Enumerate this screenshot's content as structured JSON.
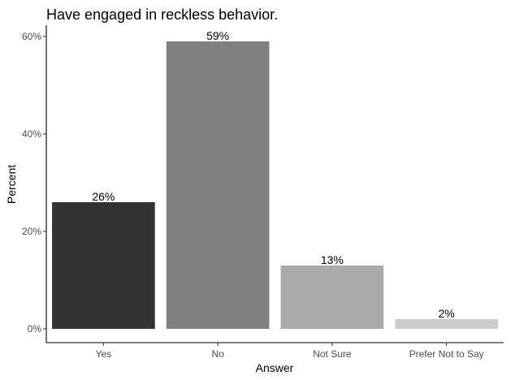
{
  "chart_data": {
    "type": "bar",
    "title": "Have engaged in reckless behavior.",
    "xlabel": "Answer",
    "ylabel": "Percent",
    "categories": [
      "Yes",
      "No",
      "Not Sure",
      "Prefer Not to Say"
    ],
    "values": [
      26,
      59,
      13,
      2
    ],
    "data_labels": [
      "26%",
      "59%",
      "13%",
      "2%"
    ],
    "colors": [
      "#333333",
      "#808080",
      "#aaaaaa",
      "#cccccc"
    ],
    "ylim": [
      0,
      63
    ],
    "yticks": [
      0,
      20,
      40,
      60
    ],
    "ytick_labels": [
      "0%",
      "20%",
      "40%",
      "60%"
    ],
    "grid": false,
    "legend": "none"
  }
}
